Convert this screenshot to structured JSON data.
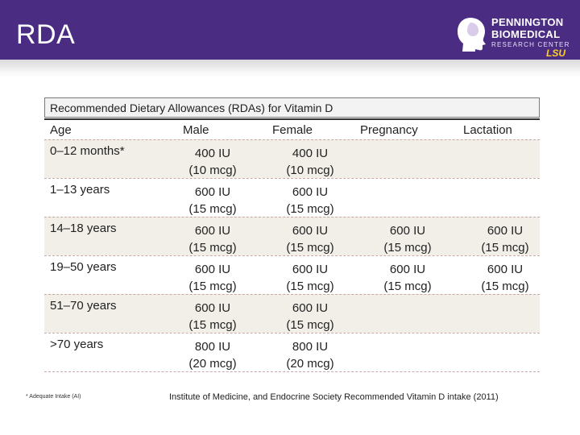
{
  "slide": {
    "title": "RDA",
    "logo": {
      "line1": "PENNINGTON",
      "line2": "BIOMEDICAL",
      "line3": "RESEARCH CENTER",
      "line4": "LSU"
    },
    "colors": {
      "header": "#4b2c83",
      "accent": "#fdd023"
    }
  },
  "table": {
    "caption": "Recommended Dietary Allowances (RDAs) for Vitamin D",
    "headers": {
      "age": "Age",
      "male": "Male",
      "female": "Female",
      "pregnancy": "Pregnancy",
      "lactation": "Lactation"
    },
    "rows": [
      {
        "age": "0–12 months*",
        "male_iu": "400 IU",
        "male_mcg": "(10 mcg)",
        "female_iu": "400 IU",
        "female_mcg": "(10 mcg)",
        "preg_iu": "",
        "preg_mcg": "",
        "lact_iu": "",
        "lact_mcg": ""
      },
      {
        "age": "1–13 years",
        "male_iu": "600 IU",
        "male_mcg": "(15 mcg)",
        "female_iu": "600 IU",
        "female_mcg": "(15 mcg)",
        "preg_iu": "",
        "preg_mcg": "",
        "lact_iu": "",
        "lact_mcg": ""
      },
      {
        "age": "14–18 years",
        "male_iu": "600 IU",
        "male_mcg": "(15 mcg)",
        "female_iu": "600 IU",
        "female_mcg": "(15 mcg)",
        "preg_iu": "600 IU",
        "preg_mcg": "(15 mcg)",
        "lact_iu": "600 IU",
        "lact_mcg": "(15 mcg)"
      },
      {
        "age": "19–50 years",
        "male_iu": "600 IU",
        "male_mcg": "(15 mcg)",
        "female_iu": "600 IU",
        "female_mcg": "(15 mcg)",
        "preg_iu": "600 IU",
        "preg_mcg": "(15 mcg)",
        "lact_iu": "600 IU",
        "lact_mcg": "(15 mcg)"
      },
      {
        "age": "51–70 years",
        "male_iu": "600 IU",
        "male_mcg": "(15 mcg)",
        "female_iu": "600 IU",
        "female_mcg": "(15 mcg)",
        "preg_iu": "",
        "preg_mcg": "",
        "lact_iu": "",
        "lact_mcg": ""
      },
      {
        "age": ">70 years",
        "male_iu": "800 IU",
        "male_mcg": "(20 mcg)",
        "female_iu": "800 IU",
        "female_mcg": "(20 mcg)",
        "preg_iu": "",
        "preg_mcg": "",
        "lact_iu": "",
        "lact_mcg": ""
      }
    ]
  },
  "footnote": "* Adequate Intake (AI)",
  "source": "Institute of Medicine, and Endocrine Society Recommended Vitamin D intake (2011)"
}
